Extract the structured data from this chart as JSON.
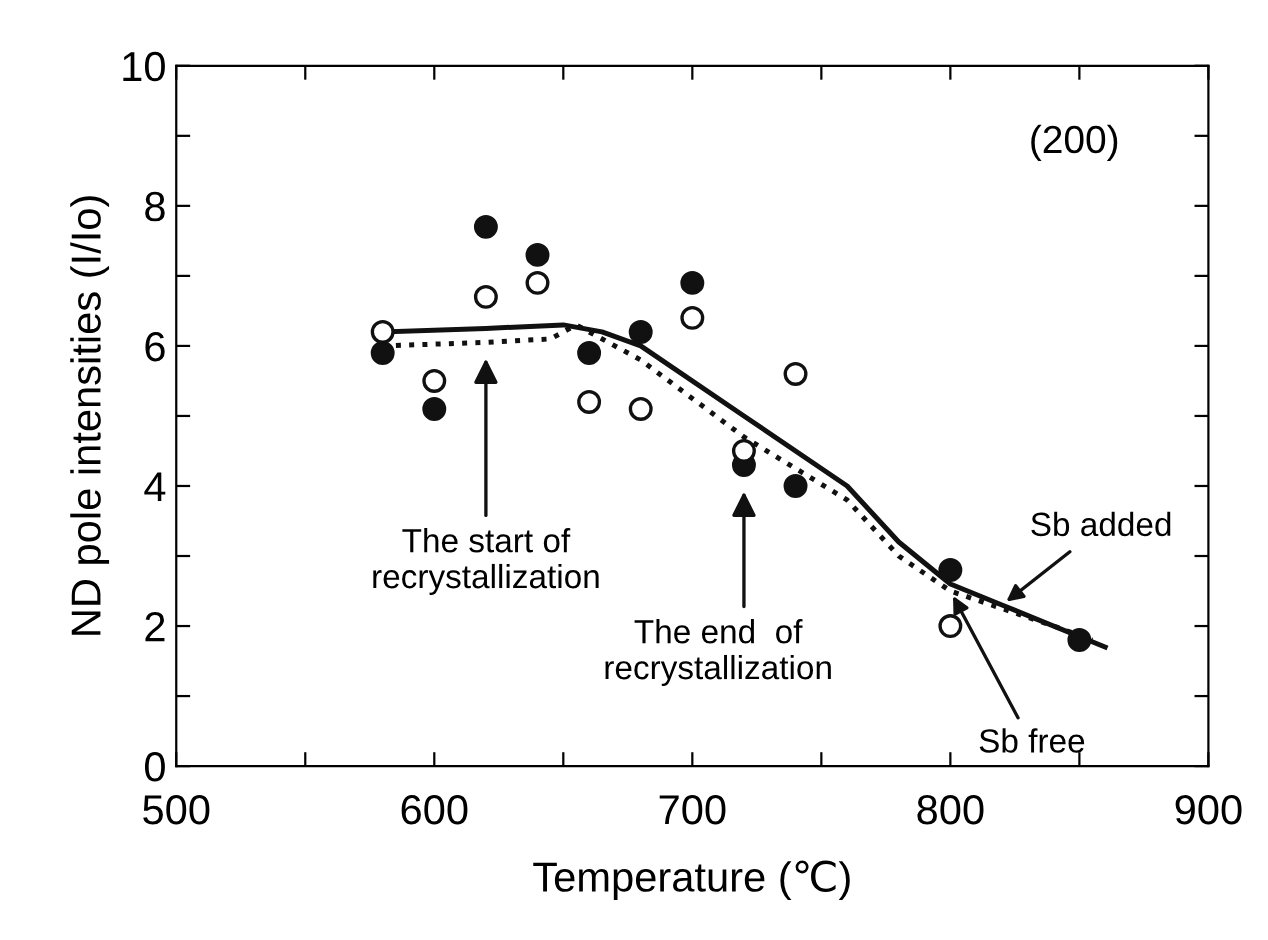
{
  "chart_data": {
    "type": "scatter",
    "xlabel": "Temperature (℃)",
    "ylabel": "ND pole intensities (I/Io)",
    "xlim": [
      500,
      900
    ],
    "ylim": [
      0,
      10
    ],
    "xticks": [
      500,
      {
        "value": 550,
        "label": null
      },
      600,
      {
        "value": 650,
        "label": null
      },
      700,
      {
        "value": 750,
        "label": null
      },
      800,
      {
        "value": 850,
        "label": null
      },
      900
    ],
    "yticks": [
      0,
      {
        "value": 1,
        "label": null
      },
      2,
      {
        "value": 3,
        "label": null
      },
      4,
      {
        "value": 5,
        "label": null
      },
      6,
      {
        "value": 7,
        "label": null
      },
      8,
      {
        "value": 9,
        "label": null
      },
      10
    ],
    "grid": false,
    "legend": false,
    "series": [
      {
        "marker": "circle",
        "color": "#111111",
        "x": [
          580,
          600,
          620,
          640,
          660,
          680,
          700,
          720,
          740,
          800,
          850
        ],
        "values": [
          5.9,
          5.1,
          7.7,
          7.3,
          5.9,
          6.2,
          6.9,
          4.3,
          4.0,
          2.8,
          1.8
        ]
      },
      {
        "marker": "circle",
        "color": "#ffffff",
        "x": [
          580,
          600,
          620,
          640,
          660,
          680,
          700,
          720,
          740,
          800
        ],
        "values": [
          6.2,
          5.5,
          6.7,
          6.9,
          5.2,
          5.1,
          6.4,
          4.5,
          5.6,
          2.0
        ]
      },
      {
        "type": "line",
        "name": "Sb added",
        "line_style": "solid",
        "marker": "none",
        "color": "#111111",
        "x": [
          580,
          620,
          650,
          665,
          680,
          720,
          760,
          780,
          800,
          820,
          860
        ],
        "values": [
          6.2,
          6.25,
          6.3,
          6.2,
          6.0,
          5.0,
          4.0,
          3.2,
          2.6,
          2.3,
          1.7
        ]
      },
      {
        "type": "line",
        "name": "Sb free",
        "line_style": "dotted",
        "marker": "none",
        "color": "#111111",
        "x": [
          580,
          620,
          645,
          655,
          680,
          720,
          760,
          780,
          800,
          840,
          855
        ],
        "values": [
          6.0,
          6.05,
          6.1,
          6.3,
          5.8,
          4.7,
          3.8,
          3.0,
          2.5,
          2.0,
          1.8
        ]
      }
    ],
    "annotations": [
      "(200)",
      "The start of\nrecrystallization",
      "The end  of\nrecrystallization"
    ]
  }
}
